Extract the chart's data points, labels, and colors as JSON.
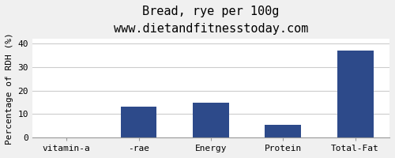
{
  "title": "Bread, rye per 100g",
  "subtitle": "www.dietandfitnesstoday.com",
  "categories": [
    "vitamin-a",
    "-rae",
    "Energy",
    "Protein",
    "Total-Fat"
  ],
  "values": [
    0,
    13,
    15,
    5.5,
    37
  ],
  "bar_color": "#2d4a8a",
  "ylabel": "Percentage of RDH (%)",
  "ylim": [
    0,
    42
  ],
  "yticks": [
    0,
    10,
    20,
    30,
    40
  ],
  "background_color": "#f0f0f0",
  "plot_bg_color": "#ffffff",
  "title_fontsize": 11,
  "subtitle_fontsize": 9,
  "tick_fontsize": 8,
  "ylabel_fontsize": 8
}
